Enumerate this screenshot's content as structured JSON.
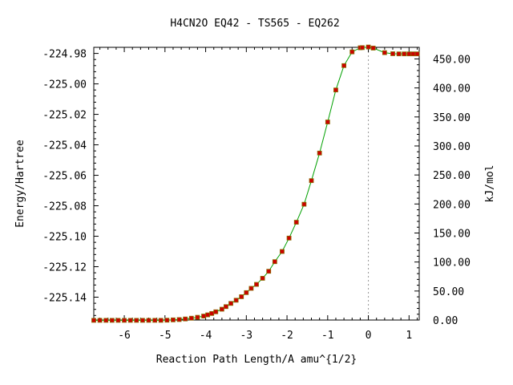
{
  "chart_data": {
    "type": "line",
    "title": "H4CN2O   EQ42 - TS565 - EQ262",
    "xlabel": "Reaction Path Length/A amu^{1/2}",
    "ylabel": "Energy/Hartree",
    "y2label": "kJ/mol",
    "xlim": [
      -6.75,
      1.25
    ],
    "ylim": [
      -225.155,
      -224.976
    ],
    "y2lim": [
      0,
      470
    ],
    "xticks": [
      -6,
      -5,
      -4,
      -3,
      -2,
      -1,
      0,
      1
    ],
    "xtick_labels": [
      "-6",
      "-5",
      "-4",
      "-3",
      "-2",
      "-1",
      "0",
      "1"
    ],
    "yticks": [
      -224.98,
      -225.0,
      -225.02,
      -225.04,
      -225.06,
      -225.08,
      -225.1,
      -225.12,
      -225.14
    ],
    "ytick_labels": [
      "-224.98",
      "-225.00",
      "-225.02",
      "-225.04",
      "-225.06",
      "-225.08",
      "-225.10",
      "-225.12",
      "-225.14"
    ],
    "y2ticks": [
      0,
      50,
      100,
      150,
      200,
      250,
      300,
      350,
      400,
      450
    ],
    "y2tick_labels": [
      "0.00",
      "50.00",
      "100.00",
      "150.00",
      "200.00",
      "250.00",
      "300.00",
      "350.00",
      "400.00",
      "450.00"
    ],
    "ts_marker_x": 0,
    "grid": false,
    "line_color": "#00a000",
    "marker_color": "#cc0000",
    "marker_edge_color": "#8a6a00",
    "series": [
      {
        "x": [
          -6.75,
          -6.6,
          -6.45,
          -6.3,
          -6.15,
          -6.0,
          -5.85,
          -5.7,
          -5.55,
          -5.4,
          -5.25,
          -5.1,
          -4.95,
          -4.8,
          -4.65,
          -4.5,
          -4.35,
          -4.2,
          -4.05,
          -3.95,
          -3.85,
          -3.75,
          -3.6,
          -3.5,
          -3.38,
          -3.25,
          -3.12,
          -3.0,
          -2.88,
          -2.75,
          -2.6,
          -2.45,
          -2.3,
          -2.12,
          -1.95,
          -1.77,
          -1.58,
          -1.4,
          -1.2,
          -1.0,
          -0.8,
          -0.6,
          -0.4,
          -0.2,
          -0.15,
          0.0,
          0.12,
          0.4,
          0.6,
          0.75,
          0.88,
          1.0,
          1.1,
          1.2
        ],
        "y": [
          -225.1552,
          -225.1552,
          -225.1552,
          -225.1552,
          -225.1552,
          -225.1552,
          -225.1552,
          -225.1552,
          -225.1552,
          -225.1552,
          -225.1552,
          -225.1552,
          -225.1551,
          -225.1549,
          -225.1547,
          -225.1543,
          -225.1538,
          -225.1532,
          -225.1524,
          -225.1516,
          -225.1507,
          -225.1496,
          -225.1479,
          -225.1462,
          -225.1441,
          -225.142,
          -225.1397,
          -225.137,
          -225.1342,
          -225.1316,
          -225.1276,
          -225.123,
          -225.1167,
          -225.11,
          -225.1012,
          -225.0908,
          -225.079,
          -225.0635,
          -225.0454,
          -225.025,
          -225.004,
          -224.988,
          -224.979,
          -224.9763,
          -224.9762,
          -224.9758,
          -224.9765,
          -224.9795,
          -224.9802,
          -224.9803,
          -224.9803,
          -224.9803,
          -224.9803,
          -224.9803
        ]
      }
    ]
  }
}
